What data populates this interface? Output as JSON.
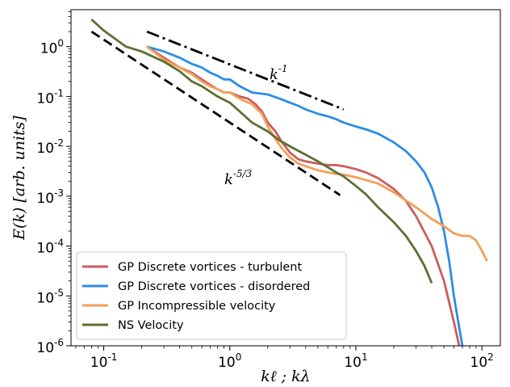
{
  "chart_data": {
    "type": "line",
    "xscale": "log",
    "yscale": "log",
    "xlim": [
      0.055,
      140
    ],
    "ylim": [
      1e-06,
      5.5
    ],
    "xlabel": "kℓ ; kλ",
    "ylabel": "E(k) [arb. units]",
    "x_ticks": [
      {
        "value": 0.1,
        "label": "10",
        "exp": "-1"
      },
      {
        "value": 1,
        "label": "10",
        "exp": "0"
      },
      {
        "value": 10,
        "label": "10",
        "exp": "1"
      },
      {
        "value": 100,
        "label": "10",
        "exp": "2"
      }
    ],
    "y_ticks": [
      {
        "value": 1,
        "label": "10",
        "exp": "0"
      },
      {
        "value": 0.1,
        "label": "10",
        "exp": "-1"
      },
      {
        "value": 0.01,
        "label": "10",
        "exp": "-2"
      },
      {
        "value": 0.001,
        "label": "10",
        "exp": "-3"
      },
      {
        "value": 0.0001,
        "label": "10",
        "exp": "-4"
      },
      {
        "value": 1e-05,
        "label": "10",
        "exp": "-5"
      },
      {
        "value": 1e-06,
        "label": "10",
        "exp": "-6"
      }
    ],
    "legend_position": "lower-left",
    "series": [
      {
        "name": "GP Discrete vortices - turbulent",
        "color": "#cc5c5c",
        "x": [
          0.22,
          0.3,
          0.4,
          0.5,
          0.6,
          0.7,
          0.8,
          0.9,
          1.0,
          1.2,
          1.4,
          1.6,
          1.8,
          2.0,
          2.3,
          2.6,
          3.0,
          3.5,
          4,
          5,
          6,
          7,
          8,
          10,
          12,
          15,
          20,
          25,
          30,
          40,
          50,
          60,
          66
        ],
        "y": [
          1.0,
          0.6,
          0.38,
          0.3,
          0.22,
          0.17,
          0.14,
          0.12,
          0.12,
          0.1,
          0.09,
          0.07,
          0.05,
          0.03,
          0.02,
          0.012,
          0.0075,
          0.0055,
          0.005,
          0.0045,
          0.0042,
          0.0042,
          0.004,
          0.0035,
          0.003,
          0.0023,
          0.0014,
          0.0008,
          0.0004,
          0.0001,
          2e-05,
          3e-06,
          1e-06
        ]
      },
      {
        "name": "GP Discrete vortices - disordered",
        "color": "#2d8ce6",
        "x": [
          0.22,
          0.3,
          0.4,
          0.5,
          0.6,
          0.7,
          0.8,
          0.9,
          1.0,
          1.2,
          1.5,
          2.0,
          2.5,
          3.0,
          3.5,
          4,
          5,
          6,
          7,
          8,
          10,
          12,
          15,
          20,
          25,
          30,
          35,
          40,
          45,
          50,
          55,
          60,
          65,
          70
        ],
        "y": [
          1.0,
          0.8,
          0.6,
          0.45,
          0.38,
          0.3,
          0.26,
          0.22,
          0.22,
          0.16,
          0.12,
          0.11,
          0.09,
          0.075,
          0.065,
          0.055,
          0.045,
          0.04,
          0.035,
          0.03,
          0.025,
          0.022,
          0.018,
          0.012,
          0.008,
          0.005,
          0.003,
          0.0015,
          0.0006,
          0.0002,
          5e-05,
          1e-05,
          3e-06,
          1e-06
        ]
      },
      {
        "name": "GP Incompressible velocity",
        "color": "#f2a05a",
        "x": [
          0.22,
          0.3,
          0.4,
          0.5,
          0.6,
          0.7,
          0.8,
          0.9,
          1.0,
          1.2,
          1.5,
          1.8,
          2.0,
          2.3,
          2.6,
          3.0,
          3.5,
          4,
          5,
          6,
          7,
          8,
          10,
          15,
          20,
          30,
          40,
          50,
          60,
          70,
          80,
          90,
          100,
          110
        ],
        "y": [
          1.0,
          0.55,
          0.38,
          0.28,
          0.2,
          0.16,
          0.14,
          0.12,
          0.12,
          0.09,
          0.07,
          0.045,
          0.025,
          0.014,
          0.009,
          0.006,
          0.0045,
          0.004,
          0.0033,
          0.003,
          0.0028,
          0.0027,
          0.0024,
          0.0018,
          0.0012,
          0.0006,
          0.00035,
          0.00025,
          0.00018,
          0.00016,
          0.00016,
          0.00013,
          8e-05,
          5e-05
        ]
      },
      {
        "name": "NS Velocity",
        "color": "#5b7033",
        "x": [
          0.08,
          0.1,
          0.15,
          0.2,
          0.3,
          0.4,
          0.5,
          0.6,
          0.8,
          1.0,
          1.2,
          1.5,
          2.0,
          2.5,
          3.0,
          4,
          5,
          6,
          7,
          8,
          10,
          12,
          15,
          20,
          25,
          30,
          35,
          40
        ],
        "y": [
          3.5,
          2.1,
          1.0,
          0.8,
          0.5,
          0.32,
          0.2,
          0.16,
          0.1,
          0.075,
          0.05,
          0.03,
          0.02,
          0.013,
          0.01,
          0.0068,
          0.005,
          0.0038,
          0.003,
          0.0025,
          0.0016,
          0.0011,
          0.0006,
          0.0003,
          0.00016,
          8e-05,
          4e-05,
          1.8e-05
        ]
      }
    ],
    "reference_lines": [
      {
        "label": "k",
        "exp": "-1",
        "x": [
          0.22,
          8
        ],
        "y": [
          2.0,
          0.055
        ],
        "style": "dashdot"
      },
      {
        "label": "k",
        "exp": "-5/3",
        "x": [
          0.08,
          7.5
        ],
        "y": [
          2.0,
          0.00105
        ],
        "style": "dashed"
      }
    ]
  }
}
